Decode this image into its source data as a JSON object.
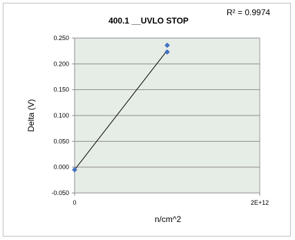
{
  "chart_data": {
    "type": "scatter",
    "title": "400.1 __UVLO STOP",
    "annotation": "R² = 0.9974",
    "xlabel": "n/cm^2",
    "ylabel": "Delta (V)",
    "xlim": [
      0,
      2000000000000
    ],
    "ylim": [
      -0.05,
      0.25
    ],
    "x_ticks": [
      {
        "value": 0,
        "label": "0"
      },
      {
        "value": 2000000000000,
        "label": "2E+12"
      }
    ],
    "y_ticks": [
      {
        "value": -0.05,
        "label": "-0.050"
      },
      {
        "value": 0.0,
        "label": "0.000"
      },
      {
        "value": 0.05,
        "label": "0.050"
      },
      {
        "value": 0.1,
        "label": "0.100"
      },
      {
        "value": 0.15,
        "label": "0.150"
      },
      {
        "value": 0.2,
        "label": "0.200"
      },
      {
        "value": 0.25,
        "label": "0.250"
      }
    ],
    "grid": true,
    "plot_background": "#e6ece6",
    "marker_color": "#4472c4",
    "trendline_color": "#000000",
    "series": [
      {
        "points": [
          {
            "x": 0,
            "y": -0.005
          },
          {
            "x": 1000000000000,
            "y": 0.236
          },
          {
            "x": 1000000000000,
            "y": 0.223
          }
        ]
      }
    ],
    "trendline": {
      "x": [
        0,
        1000000000000
      ],
      "y": [
        -0.005,
        0.226
      ]
    }
  }
}
